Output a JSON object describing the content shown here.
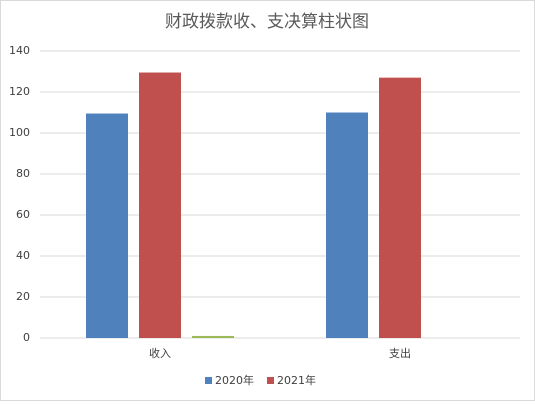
{
  "chart_data": {
    "type": "bar",
    "title": "财政拨款收、支决算柱状图",
    "categories": [
      "收入",
      "支出"
    ],
    "series": [
      {
        "name": "2020年",
        "color": "#4f81bd",
        "values": [
          109.5,
          110
        ]
      },
      {
        "name": "2021年",
        "color": "#c0504d",
        "values": [
          129.5,
          127
        ]
      },
      {
        "color": "#9bbb59",
        "values": [
          1,
          null
        ]
      }
    ],
    "ylim": [
      0,
      140
    ],
    "yticks": [
      0,
      20,
      40,
      60,
      80,
      100,
      120,
      140
    ],
    "grid": true,
    "legend": "bottom"
  }
}
